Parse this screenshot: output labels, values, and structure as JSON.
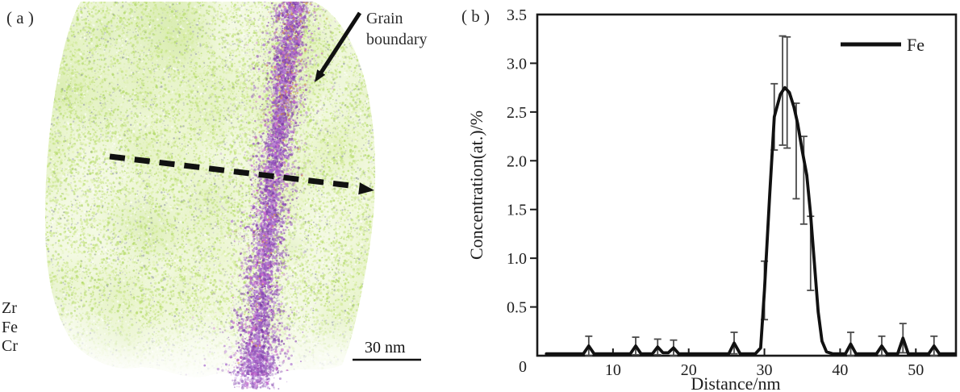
{
  "figure": {
    "panel_a": {
      "label": "( a )",
      "grain_boundary_annotation": "Grain boundary",
      "atom_labels": [
        "Zr",
        "Fe",
        "Cr"
      ],
      "scale_bar_label": "30 nm",
      "colors": {
        "matrix_greens": [
          "#b9dd6f",
          "#c6e483",
          "#d2eb97",
          "#aed763",
          "#def0ab"
        ],
        "boundary_purples": [
          "#9a5fc2",
          "#8a4bb4",
          "#a96fd0",
          "#7c3da6",
          "#b87fd6",
          "#c766cc"
        ],
        "speck_grays": [
          "#8b90a6",
          "#a7abbd"
        ],
        "minor_orange": "#d6953f",
        "annotation_black": "#111111"
      }
    },
    "panel_b": {
      "label": "( b )"
    }
  },
  "chart_data": {
    "type": "line",
    "title": "",
    "xlabel": "Distance/nm",
    "ylabel": "Concentration(at.)/%",
    "xlim": [
      0,
      55.3
    ],
    "ylim": [
      0,
      3.5
    ],
    "xticks": [
      10,
      20,
      30,
      40,
      50
    ],
    "ytick_marks": [
      0.5,
      1,
      1.5,
      2,
      2.5,
      3
    ],
    "ytick_labels": [
      {
        "value": 0,
        "label": "0"
      },
      {
        "value": 0.5,
        "label": "0.5"
      },
      {
        "value": 1,
        "label": "1.0"
      },
      {
        "value": 1.5,
        "label": "1.5"
      },
      {
        "value": 2,
        "label": "2.0"
      },
      {
        "value": 2.5,
        "label": "2.5"
      },
      {
        "value": 3,
        "label": "3.0"
      },
      {
        "value": 3.5,
        "label": "3.5"
      }
    ],
    "grid": false,
    "legend": {
      "position": "top-right",
      "entries": [
        {
          "label": "Fe",
          "color": "#111111"
        }
      ]
    },
    "error_bar_color": "#4a4a4a",
    "series": [
      {
        "name": "Fe",
        "color": "#111111",
        "points": [
          [
            1.2,
            0.02
          ],
          [
            4,
            0.02
          ],
          [
            6.1,
            0.02
          ],
          [
            6.8,
            0.1
          ],
          [
            7.5,
            0.02
          ],
          [
            9.5,
            0.02
          ],
          [
            12.3,
            0.02
          ],
          [
            13,
            0.1
          ],
          [
            13.7,
            0.02
          ],
          [
            15.2,
            0.02
          ],
          [
            15.9,
            0.09
          ],
          [
            16.6,
            0.03
          ],
          [
            17.3,
            0.03
          ],
          [
            18,
            0.08
          ],
          [
            18.7,
            0.02
          ],
          [
            20.5,
            0.02
          ],
          [
            23,
            0.02
          ],
          [
            25.3,
            0.02
          ],
          [
            26,
            0.13
          ],
          [
            26.8,
            0.02
          ],
          [
            28.8,
            0.02
          ],
          [
            29.5,
            0.08
          ],
          [
            30,
            0.67
          ],
          [
            30.7,
            1.65
          ],
          [
            31.3,
            2.45
          ],
          [
            32.1,
            2.68
          ],
          [
            32.7,
            2.75
          ],
          [
            33.3,
            2.7
          ],
          [
            33.9,
            2.55
          ],
          [
            34.4,
            2.38
          ],
          [
            35,
            2.1
          ],
          [
            35.6,
            1.85
          ],
          [
            36.1,
            1.45
          ],
          [
            36.6,
            0.95
          ],
          [
            37.1,
            0.45
          ],
          [
            37.6,
            0.15
          ],
          [
            38.2,
            0.04
          ],
          [
            39,
            0.02
          ],
          [
            40.7,
            0.02
          ],
          [
            41.4,
            0.12
          ],
          [
            42.1,
            0.02
          ],
          [
            44.8,
            0.02
          ],
          [
            45.5,
            0.1
          ],
          [
            46.2,
            0.02
          ],
          [
            47.6,
            0.02
          ],
          [
            48.3,
            0.18
          ],
          [
            49,
            0.02
          ],
          [
            51.7,
            0.02
          ],
          [
            52.4,
            0.1
          ],
          [
            53.1,
            0.02
          ],
          [
            55.2,
            0.02
          ]
        ]
      }
    ],
    "error_bars": [
      [
        6.8,
        0.1,
        0.1
      ],
      [
        13,
        0.1,
        0.09
      ],
      [
        15.9,
        0.09,
        0.08
      ],
      [
        18,
        0.08,
        0.08
      ],
      [
        26,
        0.13,
        0.11
      ],
      [
        30,
        0.67,
        0.3
      ],
      [
        31.3,
        2.45,
        0.34
      ],
      [
        32.4,
        2.72,
        0.56
      ],
      [
        33,
        2.7,
        0.57
      ],
      [
        34.2,
        2.1,
        0.49
      ],
      [
        35.2,
        1.8,
        0.45
      ],
      [
        36.1,
        1.05,
        0.38
      ],
      [
        41.4,
        0.12,
        0.12
      ],
      [
        45.5,
        0.1,
        0.1
      ],
      [
        48.3,
        0.18,
        0.15
      ],
      [
        52.4,
        0.1,
        0.1
      ]
    ]
  }
}
